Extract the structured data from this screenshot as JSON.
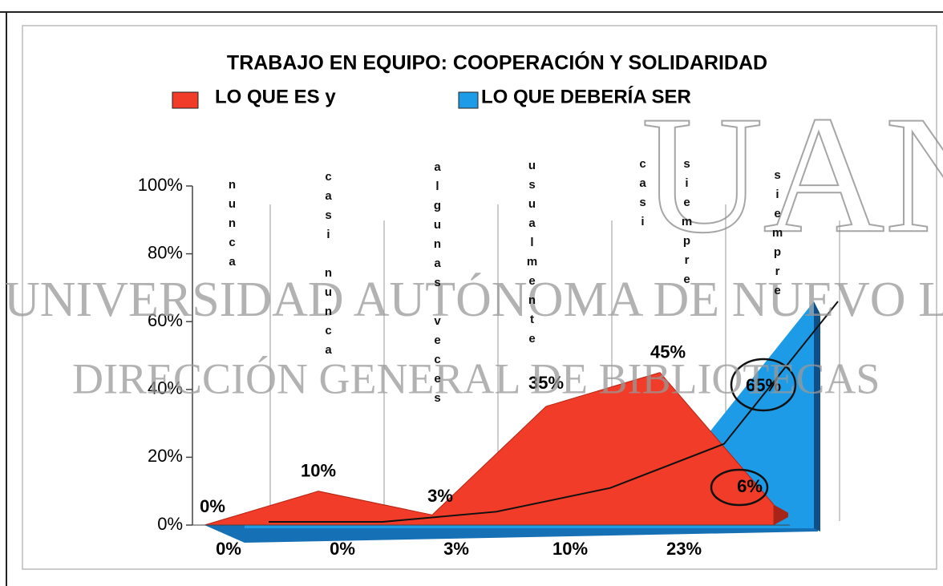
{
  "chart_data": {
    "type": "area",
    "title": "TRABAJO EN EQUIPO: COOPERACIÓN Y SOLIDARIDAD",
    "categories": [
      "nunca",
      "casi nunca",
      "algunas veces",
      "usualmente",
      "casi siempre",
      "siempre"
    ],
    "series": [
      {
        "name": "LO QUE ES y",
        "color": "#f03c28",
        "values": [
          0,
          10,
          3,
          35,
          45,
          6
        ],
        "value_labels": [
          "0%",
          "10%",
          "3%",
          "35%",
          "45%",
          "6%"
        ]
      },
      {
        "name": "LO QUE DEBERÍA SER",
        "color": "#1e9be6",
        "values": [
          0,
          0,
          3,
          10,
          23,
          65
        ],
        "value_labels": [
          "0%",
          "0%",
          "3%",
          "10%",
          "23%",
          "65%"
        ]
      }
    ],
    "ylim": [
      0,
      100
    ],
    "yticks": [
      {
        "value": 0,
        "label": "0%"
      },
      {
        "value": 20,
        "label": "20%"
      },
      {
        "value": 40,
        "label": "40%"
      },
      {
        "value": 60,
        "label": "60%"
      },
      {
        "value": 80,
        "label": "80%"
      },
      {
        "value": 100,
        "label": "100%"
      }
    ]
  },
  "watermark": {
    "logo": "UANL",
    "line1": "UNIVERSIDAD AUTÓNOMA DE NUEVO LEÓ",
    "line2": "DIRECCIÓN GENERAL DE BIBLIOTECAS"
  }
}
